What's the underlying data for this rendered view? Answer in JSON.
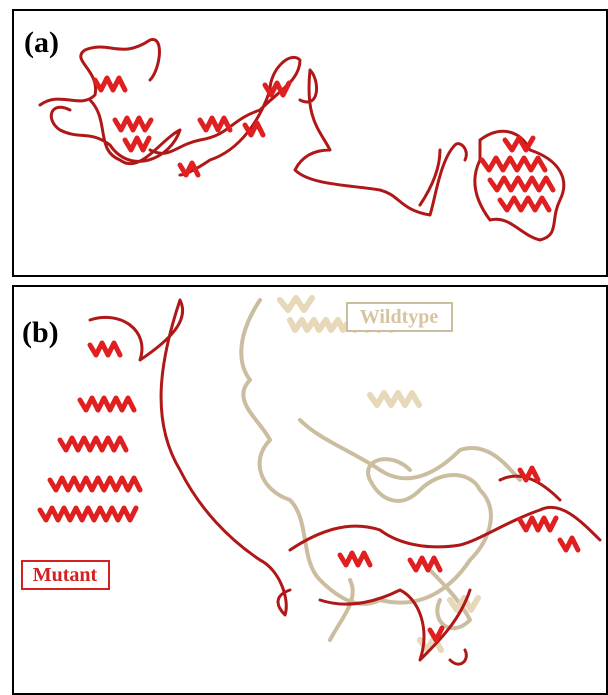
{
  "panels": [
    {
      "label": "(a)"
    },
    {
      "label": "(b)",
      "legend": {
        "wildtype": "Wildtype",
        "mutant": "Mutant"
      }
    }
  ]
}
